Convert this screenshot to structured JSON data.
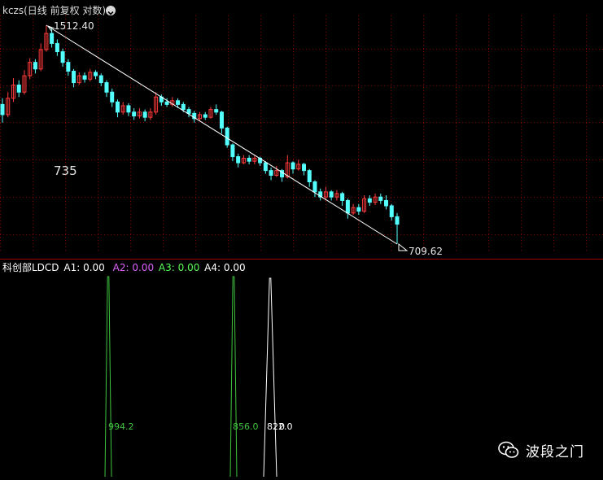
{
  "header": {
    "symbol": "kczs",
    "mode": "(日线 前复权 对数)",
    "toggle_icon": "chevron-down-icon"
  },
  "price_chart": {
    "high_label": "1512.40",
    "low_label": "709.62",
    "annotation": "735",
    "colors": {
      "up": "#ff3b3b",
      "down": "#54ffff",
      "trendline": "#ffffff",
      "grid": "#8a0000"
    }
  },
  "indicator": {
    "name": "科创部LDCD",
    "a1_label": "A1:",
    "a1_value": "0.00",
    "a1_color": "#ffffff",
    "a2_label": "A2:",
    "a2_value": "0.00",
    "a2_color": "#e060ff",
    "a3_label": "A3:",
    "a3_value": "0.00",
    "a3_color": "#55ff55",
    "a4_label": "A4:",
    "a4_value": "0.00",
    "a4_color": "#ffffff",
    "spike_labels": [
      "994.2",
      "856.0",
      "822.0",
      "0"
    ],
    "colors": {
      "green": "#3ec43e",
      "white": "#ffffff"
    }
  },
  "watermark": {
    "text": "波段之门",
    "icon": "wechat-icon"
  },
  "chart_data": {
    "type": "candlestick",
    "title": "",
    "high": 1512.4,
    "low": 709.62,
    "trendline": {
      "from": 1512.4,
      "to": 709.62
    },
    "candles": [
      {
        "o": 1150,
        "c": 1110,
        "h": 1175,
        "l": 1080
      },
      {
        "o": 1110,
        "c": 1175,
        "h": 1200,
        "l": 1100
      },
      {
        "o": 1175,
        "c": 1230,
        "h": 1260,
        "l": 1160
      },
      {
        "o": 1230,
        "c": 1200,
        "h": 1250,
        "l": 1180
      },
      {
        "o": 1200,
        "c": 1270,
        "h": 1295,
        "l": 1190
      },
      {
        "o": 1270,
        "c": 1330,
        "h": 1350,
        "l": 1255
      },
      {
        "o": 1330,
        "c": 1300,
        "h": 1345,
        "l": 1280
      },
      {
        "o": 1300,
        "c": 1390,
        "h": 1420,
        "l": 1290
      },
      {
        "o": 1390,
        "c": 1470,
        "h": 1512.4,
        "l": 1380
      },
      {
        "o": 1470,
        "c": 1420,
        "h": 1500,
        "l": 1400
      },
      {
        "o": 1420,
        "c": 1380,
        "h": 1440,
        "l": 1360
      },
      {
        "o": 1380,
        "c": 1330,
        "h": 1395,
        "l": 1310
      },
      {
        "o": 1330,
        "c": 1290,
        "h": 1345,
        "l": 1270
      },
      {
        "o": 1290,
        "c": 1240,
        "h": 1300,
        "l": 1220
      },
      {
        "o": 1240,
        "c": 1270,
        "h": 1285,
        "l": 1230
      },
      {
        "o": 1270,
        "c": 1255,
        "h": 1285,
        "l": 1240
      },
      {
        "o": 1255,
        "c": 1285,
        "h": 1300,
        "l": 1245
      },
      {
        "o": 1285,
        "c": 1270,
        "h": 1295,
        "l": 1255
      },
      {
        "o": 1270,
        "c": 1240,
        "h": 1280,
        "l": 1225
      },
      {
        "o": 1240,
        "c": 1200,
        "h": 1250,
        "l": 1180
      },
      {
        "o": 1200,
        "c": 1160,
        "h": 1215,
        "l": 1140
      },
      {
        "o": 1160,
        "c": 1120,
        "h": 1170,
        "l": 1100
      },
      {
        "o": 1120,
        "c": 1145,
        "h": 1160,
        "l": 1110
      },
      {
        "o": 1145,
        "c": 1120,
        "h": 1155,
        "l": 1105
      },
      {
        "o": 1120,
        "c": 1105,
        "h": 1135,
        "l": 1090
      },
      {
        "o": 1105,
        "c": 1120,
        "h": 1135,
        "l": 1095
      },
      {
        "o": 1120,
        "c": 1100,
        "h": 1130,
        "l": 1085
      },
      {
        "o": 1100,
        "c": 1120,
        "h": 1135,
        "l": 1090
      },
      {
        "o": 1120,
        "c": 1180,
        "h": 1200,
        "l": 1110
      },
      {
        "o": 1180,
        "c": 1160,
        "h": 1190,
        "l": 1145
      },
      {
        "o": 1160,
        "c": 1150,
        "h": 1175,
        "l": 1140
      },
      {
        "o": 1150,
        "c": 1165,
        "h": 1180,
        "l": 1140
      },
      {
        "o": 1165,
        "c": 1150,
        "h": 1175,
        "l": 1135
      },
      {
        "o": 1150,
        "c": 1130,
        "h": 1160,
        "l": 1120
      },
      {
        "o": 1130,
        "c": 1115,
        "h": 1140,
        "l": 1100
      },
      {
        "o": 1115,
        "c": 1095,
        "h": 1125,
        "l": 1080
      },
      {
        "o": 1095,
        "c": 1110,
        "h": 1120,
        "l": 1085
      },
      {
        "o": 1110,
        "c": 1100,
        "h": 1120,
        "l": 1090
      },
      {
        "o": 1100,
        "c": 1130,
        "h": 1140,
        "l": 1095
      },
      {
        "o": 1130,
        "c": 1120,
        "h": 1150,
        "l": 1110
      },
      {
        "o": 1120,
        "c": 1060,
        "h": 1125,
        "l": 1040
      },
      {
        "o": 1060,
        "c": 1000,
        "h": 1065,
        "l": 990
      },
      {
        "o": 1000,
        "c": 960,
        "h": 1005,
        "l": 945
      },
      {
        "o": 960,
        "c": 940,
        "h": 970,
        "l": 925
      },
      {
        "o": 940,
        "c": 955,
        "h": 965,
        "l": 935
      },
      {
        "o": 955,
        "c": 945,
        "h": 965,
        "l": 935
      },
      {
        "o": 945,
        "c": 955,
        "h": 965,
        "l": 935
      },
      {
        "o": 955,
        "c": 940,
        "h": 960,
        "l": 930
      },
      {
        "o": 940,
        "c": 915,
        "h": 945,
        "l": 905
      },
      {
        "o": 915,
        "c": 900,
        "h": 925,
        "l": 885
      },
      {
        "o": 900,
        "c": 915,
        "h": 930,
        "l": 895
      },
      {
        "o": 915,
        "c": 895,
        "h": 920,
        "l": 880
      },
      {
        "o": 895,
        "c": 940,
        "h": 965,
        "l": 890
      },
      {
        "o": 940,
        "c": 920,
        "h": 945,
        "l": 905
      },
      {
        "o": 920,
        "c": 935,
        "h": 950,
        "l": 915
      },
      {
        "o": 935,
        "c": 915,
        "h": 940,
        "l": 900
      },
      {
        "o": 915,
        "c": 880,
        "h": 920,
        "l": 865
      },
      {
        "o": 880,
        "c": 850,
        "h": 885,
        "l": 835
      },
      {
        "o": 850,
        "c": 835,
        "h": 860,
        "l": 825
      },
      {
        "o": 835,
        "c": 850,
        "h": 865,
        "l": 825
      },
      {
        "o": 850,
        "c": 835,
        "h": 855,
        "l": 825
      },
      {
        "o": 835,
        "c": 845,
        "h": 855,
        "l": 825
      },
      {
        "o": 845,
        "c": 825,
        "h": 850,
        "l": 810
      },
      {
        "o": 825,
        "c": 790,
        "h": 830,
        "l": 775
      },
      {
        "o": 790,
        "c": 805,
        "h": 815,
        "l": 785
      },
      {
        "o": 805,
        "c": 795,
        "h": 815,
        "l": 785
      },
      {
        "o": 795,
        "c": 830,
        "h": 840,
        "l": 790
      },
      {
        "o": 830,
        "c": 820,
        "h": 840,
        "l": 810
      },
      {
        "o": 820,
        "c": 835,
        "h": 845,
        "l": 812
      },
      {
        "o": 835,
        "c": 825,
        "h": 845,
        "l": 815
      },
      {
        "o": 825,
        "c": 810,
        "h": 840,
        "l": 800
      },
      {
        "o": 810,
        "c": 780,
        "h": 815,
        "l": 770
      },
      {
        "o": 780,
        "c": 760,
        "h": 790,
        "l": 709.62
      }
    ]
  }
}
